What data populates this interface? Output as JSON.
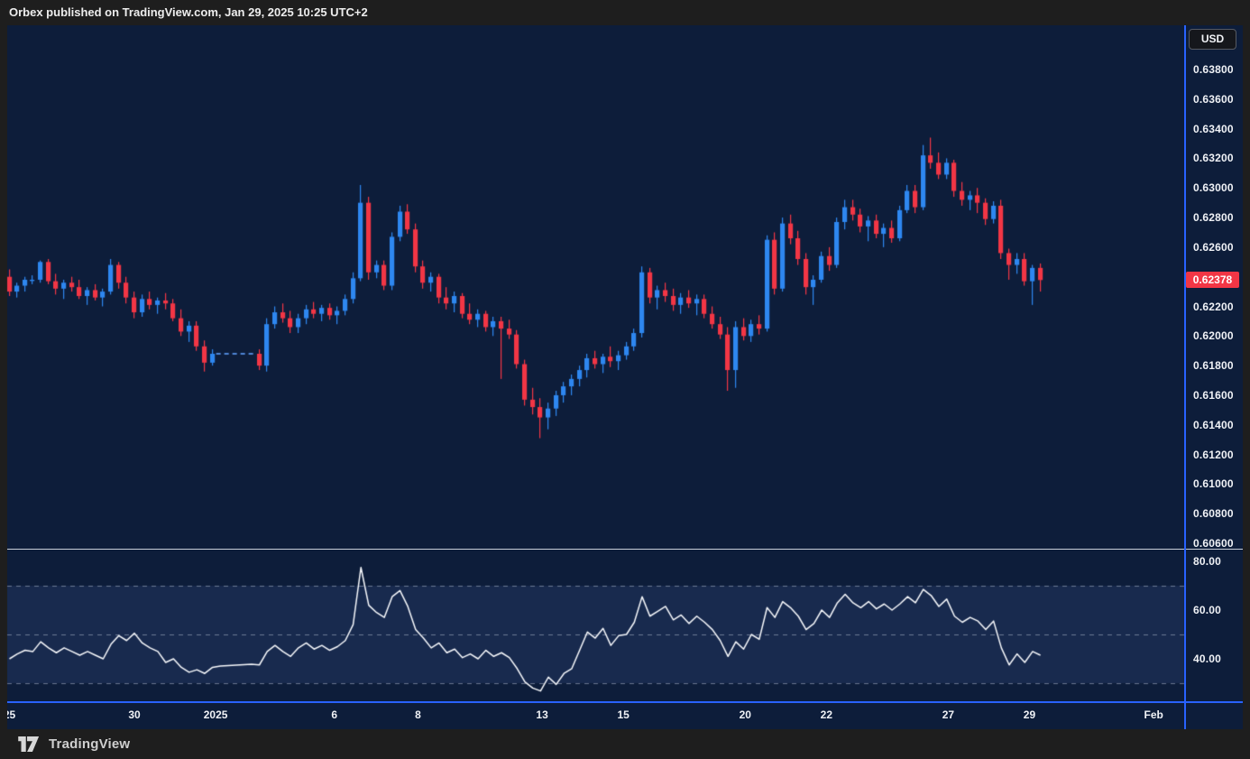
{
  "header": {
    "text": "Orbex published on TradingView.com, Jan 29, 2025 10:25 UTC+2"
  },
  "price_axis": {
    "currency_label": "USD",
    "last_price_label": "0.62378",
    "ticks": [
      "0.63800",
      "0.63600",
      "0.63400",
      "0.63200",
      "0.63000",
      "0.62800",
      "0.62600",
      "0.62200",
      "0.62000",
      "0.61800",
      "0.61600",
      "0.61400",
      "0.61200",
      "0.61000",
      "0.60800",
      "0.60600"
    ]
  },
  "time_axis": {
    "ticks": [
      {
        "label": "25",
        "slot": 0
      },
      {
        "label": "30",
        "slot": 16
      },
      {
        "label": "2025",
        "slot": 26.4
      },
      {
        "label": "6",
        "slot": 41.6
      },
      {
        "label": "8",
        "slot": 52.3
      },
      {
        "label": "13",
        "slot": 68.2
      },
      {
        "label": "15",
        "slot": 78.6
      },
      {
        "label": "20",
        "slot": 94.2
      },
      {
        "label": "22",
        "slot": 104.6
      },
      {
        "label": "27",
        "slot": 120.2
      },
      {
        "label": "29",
        "slot": 130.6
      },
      {
        "label": "Feb",
        "slot": 146.5
      }
    ]
  },
  "footer": {
    "brand": "TradingView"
  },
  "colors": {
    "up": "#2e87f0",
    "down": "#f23645",
    "background": "#0d1d3a",
    "frame": "#1e1e1e",
    "accent_blue": "#2962ff",
    "rsi_line": "#f7f9fc",
    "band": "rgba(130,160,255,0.10)",
    "level_dash": "rgba(178,188,208,0.55)",
    "gap_dash": "#4f86d6",
    "last_price_bg": "#f23645"
  },
  "chart_data": [
    {
      "type": "candlestick",
      "pane": "price",
      "ylabel": "USD",
      "ylim": [
        0.6056,
        0.641
      ],
      "grid": false,
      "last_price": 0.62378,
      "gap": {
        "from_slot": 26,
        "to_slot": 32,
        "price": 0.6188
      },
      "y_ticks": [
        "0.63800",
        "0.63600",
        "0.63400",
        "0.63200",
        "0.63000",
        "0.62800",
        "0.62600",
        "0.62200",
        "0.62000",
        "0.61800",
        "0.61600",
        "0.61400",
        "0.61200",
        "0.61000",
        "0.60800",
        "0.60600"
      ],
      "candles": [
        [
          0.624,
          0.6245,
          0.6227,
          0.623
        ],
        [
          0.623,
          0.6236,
          0.6226,
          0.6234
        ],
        [
          0.6234,
          0.624,
          0.623,
          0.6238
        ],
        [
          0.6238,
          0.6241,
          0.6235,
          0.6238
        ],
        [
          0.6238,
          0.6251,
          0.6236,
          0.625
        ],
        [
          0.625,
          0.6252,
          0.6235,
          0.6237
        ],
        [
          0.6237,
          0.6242,
          0.6228,
          0.6232
        ],
        [
          0.6232,
          0.6238,
          0.6225,
          0.6236
        ],
        [
          0.6236,
          0.624,
          0.623,
          0.6233
        ],
        [
          0.6233,
          0.6238,
          0.6225,
          0.6227
        ],
        [
          0.6227,
          0.6233,
          0.6221,
          0.6231
        ],
        [
          0.6231,
          0.6235,
          0.6224,
          0.6226
        ],
        [
          0.6226,
          0.6232,
          0.622,
          0.623
        ],
        [
          0.623,
          0.6252,
          0.6228,
          0.6248
        ],
        [
          0.6248,
          0.625,
          0.6232,
          0.6236
        ],
        [
          0.6236,
          0.624,
          0.6222,
          0.6226
        ],
        [
          0.6226,
          0.623,
          0.6212,
          0.6216
        ],
        [
          0.6216,
          0.6228,
          0.6213,
          0.6225
        ],
        [
          0.6225,
          0.623,
          0.6218,
          0.6221
        ],
        [
          0.6221,
          0.6226,
          0.6215,
          0.6224
        ],
        [
          0.6224,
          0.6229,
          0.6218,
          0.6222
        ],
        [
          0.6222,
          0.6225,
          0.621,
          0.6212
        ],
        [
          0.6212,
          0.6218,
          0.62,
          0.6203
        ],
        [
          0.6203,
          0.621,
          0.6196,
          0.6207
        ],
        [
          0.6207,
          0.621,
          0.619,
          0.6193
        ],
        [
          0.6193,
          0.6197,
          0.6176,
          0.6182
        ],
        [
          0.6182,
          0.6191,
          0.618,
          0.6188
        ],
        null,
        null,
        null,
        null,
        null,
        [
          0.6188,
          0.6191,
          0.6177,
          0.618
        ],
        [
          0.618,
          0.6212,
          0.6176,
          0.6208
        ],
        [
          0.6208,
          0.622,
          0.6205,
          0.6216
        ],
        [
          0.6216,
          0.6222,
          0.6209,
          0.6212
        ],
        [
          0.6212,
          0.6217,
          0.6202,
          0.6206
        ],
        [
          0.6206,
          0.6215,
          0.6202,
          0.6212
        ],
        [
          0.6212,
          0.6221,
          0.6208,
          0.6218
        ],
        [
          0.6218,
          0.6223,
          0.6212,
          0.6215
        ],
        [
          0.6215,
          0.6221,
          0.621,
          0.6219
        ],
        [
          0.6219,
          0.6222,
          0.6211,
          0.6214
        ],
        [
          0.6214,
          0.622,
          0.6208,
          0.6217
        ],
        [
          0.6217,
          0.6228,
          0.6214,
          0.6225
        ],
        [
          0.6225,
          0.6243,
          0.6222,
          0.6239
        ],
        [
          0.6239,
          0.6302,
          0.6237,
          0.629
        ],
        [
          0.629,
          0.6294,
          0.6238,
          0.6243
        ],
        [
          0.6243,
          0.6251,
          0.6239,
          0.6248
        ],
        [
          0.6248,
          0.6251,
          0.6231,
          0.6234
        ],
        [
          0.6234,
          0.627,
          0.6231,
          0.6267
        ],
        [
          0.6267,
          0.6288,
          0.6264,
          0.6284
        ],
        [
          0.6284,
          0.6289,
          0.6269,
          0.6272
        ],
        [
          0.6272,
          0.6276,
          0.6243,
          0.6247
        ],
        [
          0.6247,
          0.6251,
          0.6232,
          0.6236
        ],
        [
          0.6236,
          0.6243,
          0.623,
          0.624
        ],
        [
          0.624,
          0.6242,
          0.6222,
          0.6226
        ],
        [
          0.6226,
          0.6233,
          0.6218,
          0.6222
        ],
        [
          0.6222,
          0.623,
          0.6216,
          0.6227
        ],
        [
          0.6227,
          0.6229,
          0.6212,
          0.6215
        ],
        [
          0.6215,
          0.6222,
          0.6208,
          0.6211
        ],
        [
          0.6211,
          0.6218,
          0.6206,
          0.6215
        ],
        [
          0.6215,
          0.6217,
          0.6203,
          0.6206
        ],
        [
          0.6206,
          0.6213,
          0.62,
          0.621
        ],
        [
          0.621,
          0.6213,
          0.6171,
          0.6205
        ],
        [
          0.6205,
          0.6211,
          0.6198,
          0.6201
        ],
        [
          0.6201,
          0.6204,
          0.6178,
          0.6181
        ],
        [
          0.6181,
          0.6184,
          0.6153,
          0.6157
        ],
        [
          0.6157,
          0.6165,
          0.6147,
          0.6152
        ],
        [
          0.6152,
          0.6158,
          0.6131,
          0.6145
        ],
        [
          0.6145,
          0.6155,
          0.6137,
          0.6151
        ],
        [
          0.6151,
          0.6163,
          0.6146,
          0.616
        ],
        [
          0.616,
          0.6169,
          0.6155,
          0.6166
        ],
        [
          0.6166,
          0.6174,
          0.616,
          0.6171
        ],
        [
          0.6171,
          0.618,
          0.6166,
          0.6177
        ],
        [
          0.6177,
          0.6188,
          0.6172,
          0.6185
        ],
        [
          0.6185,
          0.619,
          0.6178,
          0.6181
        ],
        [
          0.6181,
          0.6188,
          0.6175,
          0.6186
        ],
        [
          0.6186,
          0.6193,
          0.6179,
          0.6183
        ],
        [
          0.6183,
          0.619,
          0.6177,
          0.6187
        ],
        [
          0.6187,
          0.6196,
          0.6184,
          0.6193
        ],
        [
          0.6193,
          0.6205,
          0.619,
          0.6202
        ],
        [
          0.6202,
          0.6247,
          0.6199,
          0.6243
        ],
        [
          0.6243,
          0.6246,
          0.6222,
          0.6226
        ],
        [
          0.6226,
          0.6234,
          0.6218,
          0.6231
        ],
        [
          0.6231,
          0.6236,
          0.6223,
          0.6227
        ],
        [
          0.6227,
          0.6232,
          0.6217,
          0.6221
        ],
        [
          0.6221,
          0.6229,
          0.6215,
          0.6226
        ],
        [
          0.6226,
          0.6231,
          0.6219,
          0.6222
        ],
        [
          0.6222,
          0.6228,
          0.6214,
          0.6225
        ],
        [
          0.6225,
          0.6228,
          0.6212,
          0.6215
        ],
        [
          0.6215,
          0.622,
          0.6205,
          0.6208
        ],
        [
          0.6208,
          0.6213,
          0.6198,
          0.6201
        ],
        [
          0.6201,
          0.6206,
          0.6163,
          0.6177
        ],
        [
          0.6177,
          0.621,
          0.6165,
          0.6206
        ],
        [
          0.6206,
          0.6212,
          0.6197,
          0.62
        ],
        [
          0.62,
          0.6211,
          0.6196,
          0.6208
        ],
        [
          0.6208,
          0.6214,
          0.6201,
          0.6205
        ],
        [
          0.6205,
          0.6268,
          0.6203,
          0.6265
        ],
        [
          0.6265,
          0.627,
          0.6228,
          0.6232
        ],
        [
          0.6232,
          0.628,
          0.623,
          0.6276
        ],
        [
          0.6276,
          0.6282,
          0.6262,
          0.6266
        ],
        [
          0.6266,
          0.6271,
          0.6248,
          0.6252
        ],
        [
          0.6252,
          0.6256,
          0.6228,
          0.6233
        ],
        [
          0.6233,
          0.6241,
          0.6221,
          0.6238
        ],
        [
          0.6238,
          0.6257,
          0.6236,
          0.6254
        ],
        [
          0.6254,
          0.626,
          0.6244,
          0.6248
        ],
        [
          0.6248,
          0.628,
          0.6246,
          0.6277
        ],
        [
          0.6277,
          0.6292,
          0.6272,
          0.6287
        ],
        [
          0.6287,
          0.6292,
          0.6278,
          0.6282
        ],
        [
          0.6282,
          0.6286,
          0.627,
          0.6274
        ],
        [
          0.6274,
          0.6281,
          0.6264,
          0.6278
        ],
        [
          0.6278,
          0.6282,
          0.6266,
          0.6269
        ],
        [
          0.6269,
          0.6276,
          0.626,
          0.6273
        ],
        [
          0.6273,
          0.6278,
          0.6263,
          0.6266
        ],
        [
          0.6266,
          0.6288,
          0.6264,
          0.6285
        ],
        [
          0.6285,
          0.6302,
          0.6283,
          0.6298
        ],
        [
          0.6298,
          0.6302,
          0.6283,
          0.6287
        ],
        [
          0.6287,
          0.6329,
          0.6285,
          0.6322
        ],
        [
          0.6322,
          0.6334,
          0.6313,
          0.6317
        ],
        [
          0.6317,
          0.6324,
          0.6306,
          0.6309
        ],
        [
          0.6309,
          0.632,
          0.6306,
          0.6317
        ],
        [
          0.6317,
          0.6319,
          0.6294,
          0.6298
        ],
        [
          0.6298,
          0.6304,
          0.6288,
          0.6292
        ],
        [
          0.6292,
          0.6298,
          0.6285,
          0.6295
        ],
        [
          0.6295,
          0.63,
          0.6283,
          0.629
        ],
        [
          0.629,
          0.6293,
          0.6275,
          0.6279
        ],
        [
          0.6279,
          0.6291,
          0.6276,
          0.6288
        ],
        [
          0.6288,
          0.6292,
          0.6252,
          0.6256
        ],
        [
          0.6256,
          0.6259,
          0.6238,
          0.6248
        ],
        [
          0.6248,
          0.6256,
          0.6242,
          0.6252
        ],
        [
          0.6252,
          0.6256,
          0.6234,
          0.6237
        ],
        [
          0.6237,
          0.6248,
          0.6221,
          0.6246
        ],
        [
          0.6246,
          0.6249,
          0.623,
          0.62378
        ]
      ]
    },
    {
      "type": "line",
      "pane": "oscillator",
      "ylim": [
        20,
        88
      ],
      "levels": [
        70,
        50,
        30
      ],
      "band": [
        30,
        70
      ],
      "y_ticks": [
        "80.00",
        "60.00",
        "40.00"
      ],
      "values": [
        40,
        42,
        43.5,
        43,
        47,
        44.5,
        42.5,
        44.5,
        43,
        41.5,
        43,
        41.5,
        40,
        46,
        49.5,
        47.5,
        50.5,
        46.5,
        44.5,
        43,
        38.5,
        40,
        36.5,
        34.5,
        35.5,
        34,
        36.5,
        37,
        37.2,
        37.4,
        37.6,
        37.8,
        37.5,
        43,
        45.5,
        43,
        41,
        44.5,
        46.5,
        44,
        45.5,
        43.5,
        45,
        47.5,
        54,
        77.5,
        62,
        59,
        57,
        65.5,
        68,
        61.5,
        52,
        48.5,
        44.5,
        46.5,
        42.5,
        44,
        40.5,
        42,
        40,
        43.5,
        41,
        42.5,
        40.5,
        36,
        30.5,
        28,
        26.8,
        32.5,
        29.5,
        34,
        36,
        43.5,
        51,
        48.5,
        52.5,
        45.5,
        49.5,
        50,
        55,
        65.5,
        57.5,
        59.5,
        61.5,
        56,
        58,
        54.5,
        57.5,
        55,
        52,
        47.5,
        41,
        47,
        44,
        50,
        48,
        61,
        57,
        63.5,
        61,
        57.5,
        52,
        54.5,
        60,
        57,
        63,
        66.5,
        63,
        61,
        63.5,
        60.5,
        62.5,
        60,
        62.5,
        65.5,
        63,
        68.5,
        66,
        61.5,
        64.5,
        57.5,
        55,
        57,
        55.5,
        52,
        55.5,
        44.5,
        37.5,
        42,
        38.5,
        43,
        41.5
      ]
    }
  ]
}
